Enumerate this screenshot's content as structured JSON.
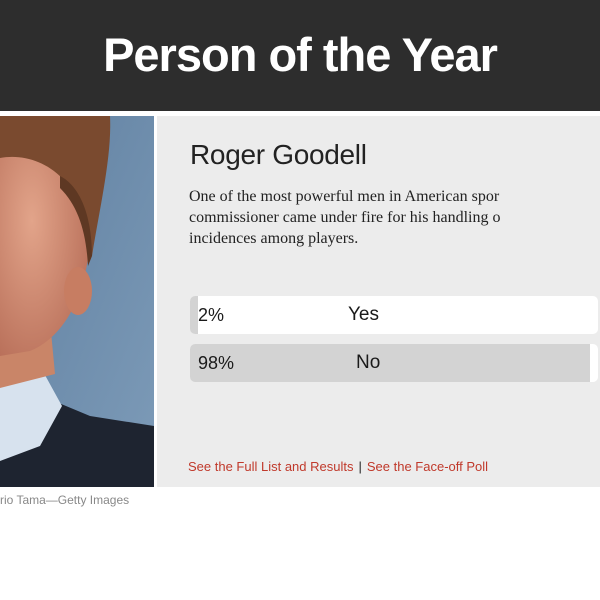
{
  "header": {
    "title": "Person of the Year"
  },
  "photo": {
    "credit": "rio Tama—Getty Images"
  },
  "poll": {
    "name": "Roger Goodell",
    "description_lines": [
      "One of the most powerful men in American spor",
      "commissioner came under fire for his handling o",
      "incidences among players."
    ],
    "options": [
      {
        "percent_label": "2%",
        "label": "Yes",
        "percent": 2
      },
      {
        "percent_label": "98%",
        "label": "No",
        "percent": 98
      }
    ]
  },
  "links": {
    "full_list": "See the Full List and Results",
    "separator": "|",
    "faceoff": "See the Face-off Poll"
  },
  "colors": {
    "header_bg": "#2d2d2d",
    "panel_bg": "#ececec",
    "link": "#c0392b",
    "bar_fill": "#d3d3d3"
  }
}
